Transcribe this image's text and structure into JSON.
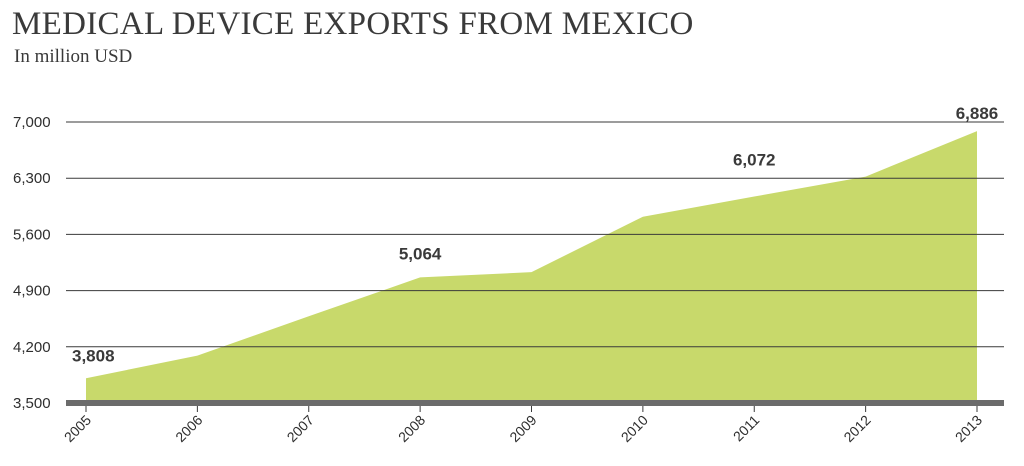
{
  "header": {
    "title": "MEDICAL DEVICE EXPORTS FROM MEXICO",
    "subtitle": "In million USD"
  },
  "colors": {
    "area_fill": "#c8d96b",
    "gridline": "#3a3a3a",
    "baseline": "#6b6b6b",
    "text": "#3a3a3a"
  },
  "chart_data": {
    "type": "area",
    "title": "MEDICAL DEVICE EXPORTS FROM MEXICO",
    "subtitle": "In million USD",
    "x": [
      "2005",
      "2006",
      "2007",
      "2008",
      "2009",
      "2010",
      "2011",
      "2012",
      "2013"
    ],
    "series": [
      {
        "values": [
          3808,
          4090,
          4580,
          5064,
          5130,
          5820,
          6072,
          6320,
          6886
        ]
      }
    ],
    "ylim": [
      3500,
      7000
    ],
    "yticks": [
      3500,
      4200,
      4900,
      5600,
      6300,
      7000
    ],
    "ytick_labels": [
      "3,500",
      "4,200",
      "4,900",
      "5,600",
      "6,300",
      "7,000"
    ],
    "data_labels": [
      {
        "x": "2005",
        "text": "3,808"
      },
      {
        "x": "2008",
        "text": "5,064"
      },
      {
        "x": "2011",
        "text": "6,072"
      },
      {
        "x": "2013",
        "text": "6,886"
      }
    ],
    "xlabel": "",
    "ylabel": "",
    "grid": true,
    "legend": "none"
  }
}
